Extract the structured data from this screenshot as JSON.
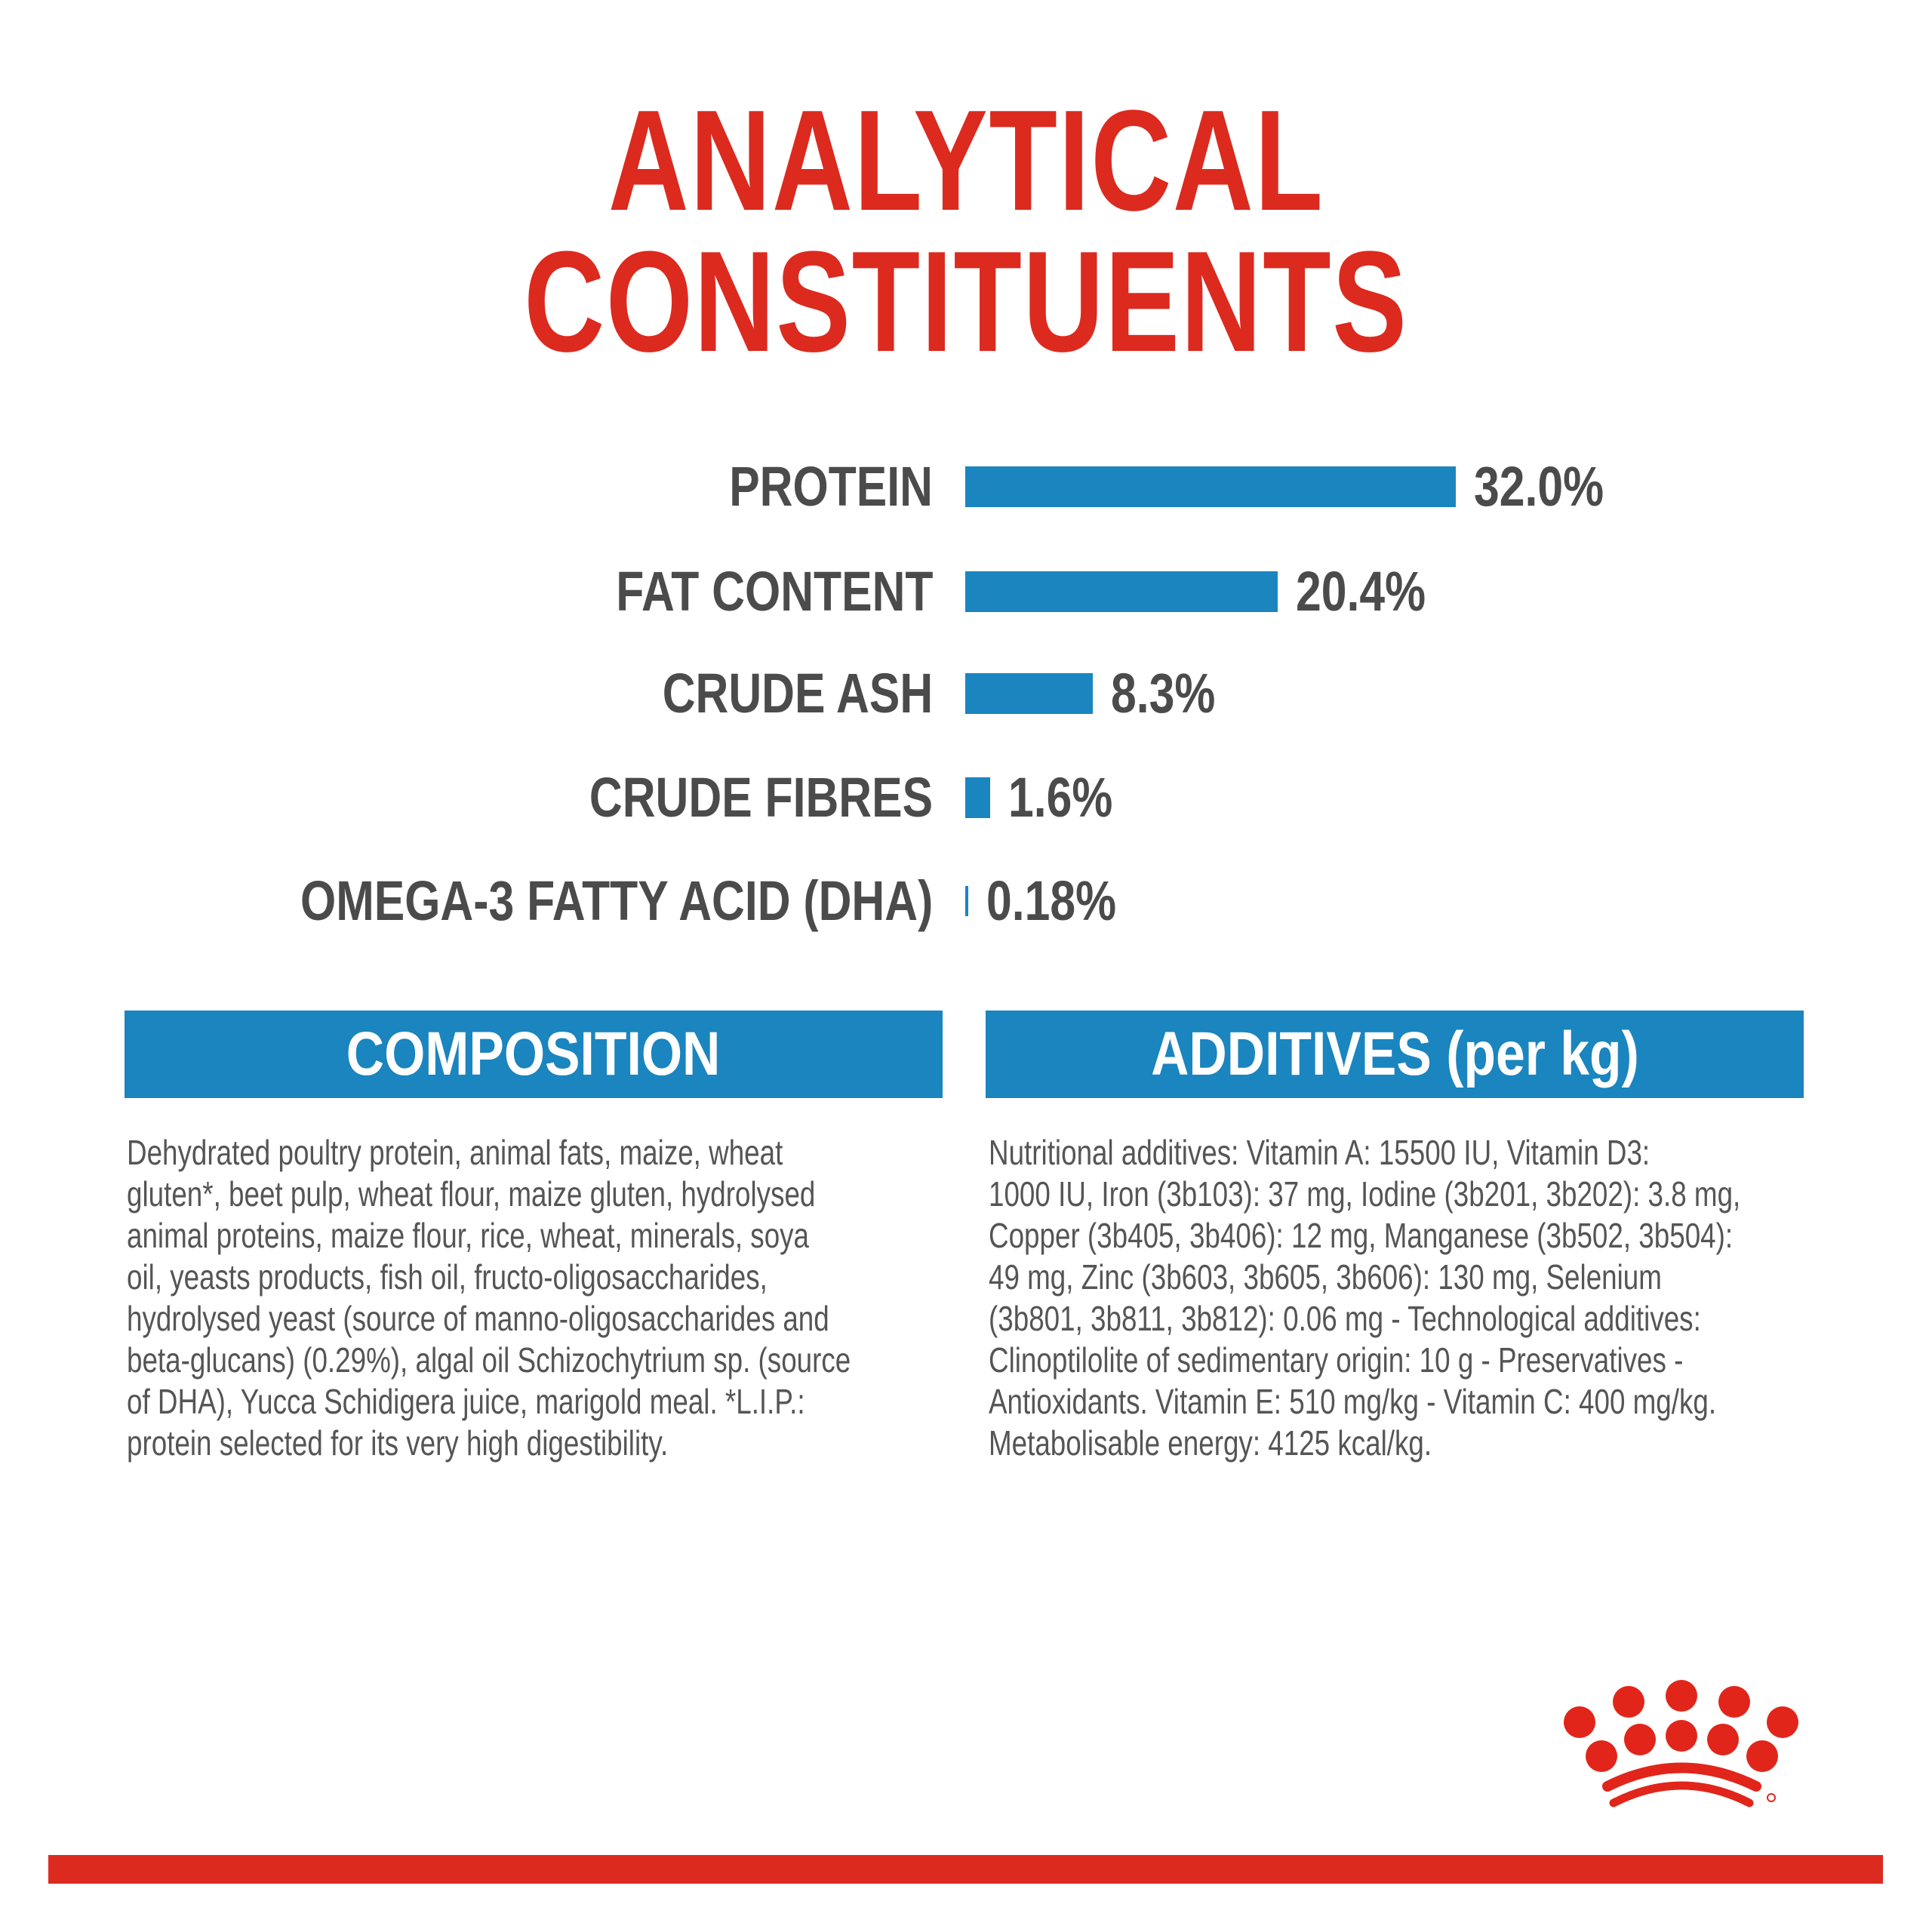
{
  "title": {
    "line1": "ANALYTICAL",
    "line2": "CONSTITUENTS"
  },
  "colors": {
    "title_red": "#dc2a1f",
    "bar_blue": "#1a85bf",
    "text_gray": "#4b4b4b"
  },
  "chart_data": {
    "type": "bar",
    "orientation": "horizontal",
    "title": "ANALYTICAL CONSTITUENTS",
    "categories": [
      "PROTEIN",
      "FAT CONTENT",
      "CRUDE ASH",
      "CRUDE FIBRES",
      "OMEGA-3 FATTY ACID (DHA)"
    ],
    "values": [
      32.0,
      20.4,
      8.3,
      1.6,
      0.18
    ],
    "value_labels": [
      "32.0%",
      "20.4%",
      "8.3%",
      "1.6%",
      "0.18%"
    ],
    "unit": "%",
    "xlim": [
      0,
      32
    ],
    "grid": false
  },
  "composition": {
    "heading": "COMPOSITION",
    "lines": [
      "Dehydrated poultry protein, animal fats, maize, wheat",
      "gluten*, beet pulp, wheat flour, maize gluten, hydrolysed",
      "animal proteins, maize flour, rice, wheat, minerals, soya",
      "oil, yeasts products, fish oil, fructo-oligosaccharides,",
      "hydrolysed yeast (source of manno-oligosaccharides and",
      "beta-glucans) (0.29%), algal oil Schizochytrium sp. (source",
      "of DHA), Yucca Schidigera juice, marigold meal. *L.I.P.:",
      "protein selected for its very high digestibility."
    ]
  },
  "additives": {
    "heading": "ADDITIVES (per kg)",
    "lines": [
      "Nutritional additives: Vitamin A: 15500 IU, Vitamin D3:",
      "1000 IU, Iron (3b103): 37 mg, Iodine (3b201, 3b202): 3.8 mg,",
      "Copper (3b405, 3b406): 12 mg, Manganese (3b502, 3b504):",
      "49 mg, Zinc (3b603, 3b605, 3b606): 130 mg, Selenium",
      "(3b801, 3b811, 3b812): 0.06 mg - Technological additives:",
      "Clinoptilolite of sedimentary origin: 10 g - Preservatives -",
      "Antioxidants. Vitamin E: 510 mg/kg - Vitamin C: 400 mg/kg.",
      "Metabolisable energy: 4125 kcal/kg."
    ]
  },
  "logo": {
    "name": "royal-canin-crown-logo"
  }
}
